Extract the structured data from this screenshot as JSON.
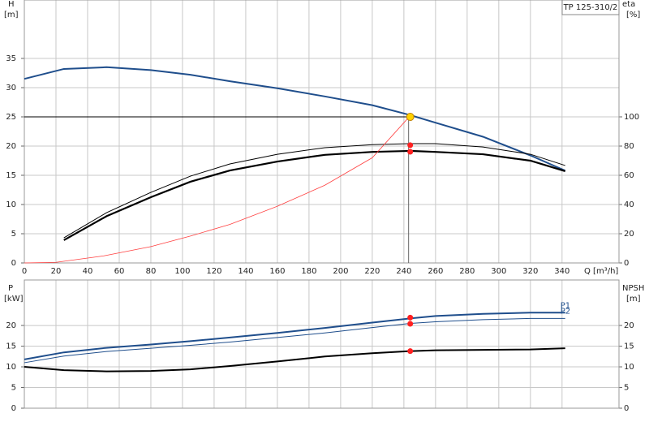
{
  "chart_data": [
    {
      "type": "line",
      "title": "TP 125-310/2",
      "x_label": "Q [m³/h]",
      "y_label": "H",
      "y_unit": "[m]",
      "y2_label": "eta",
      "y2_unit": "[%]",
      "xlim": [
        0,
        376
      ],
      "xticks": [
        0,
        20,
        40,
        60,
        80,
        100,
        120,
        140,
        160,
        180,
        200,
        220,
        240,
        260,
        280,
        300,
        320,
        340
      ],
      "ylim": [
        0,
        45
      ],
      "yticks": [
        0,
        5,
        10,
        15,
        20,
        25,
        30,
        35
      ],
      "y2lim": [
        0,
        180
      ],
      "y2ticks": [
        0,
        20,
        40,
        60,
        80,
        100
      ],
      "grid": true,
      "series": [
        {
          "color": "#1f4e8c",
          "width": 2,
          "x": [
            0,
            25,
            52,
            80,
            105,
            130,
            160,
            190,
            220,
            244,
            260,
            290,
            320,
            342
          ],
          "values": [
            31.5,
            33.2,
            33.5,
            33,
            32.2,
            31.1,
            29.9,
            28.5,
            27,
            25.3,
            24,
            21.6,
            18.4,
            15.8
          ]
        },
        {
          "color": "#000000",
          "width": 2.2,
          "axis": "y2",
          "x": [
            25,
            52,
            80,
            105,
            130,
            160,
            190,
            220,
            244,
            260,
            290,
            320,
            342
          ],
          "values": [
            15.6,
            32,
            45,
            55.6,
            63.3,
            69.4,
            74,
            76,
            76.7,
            76,
            74.4,
            70,
            62.8
          ]
        },
        {
          "color": "#000000",
          "width": 1,
          "axis": "y2",
          "x": [
            25,
            52,
            80,
            105,
            130,
            160,
            190,
            220,
            244,
            260,
            290,
            320,
            342
          ],
          "values": [
            17.2,
            34.4,
            48.3,
            59.4,
            67.8,
            74.4,
            78.9,
            81,
            81.7,
            81.7,
            79.4,
            74.4,
            66.7
          ]
        },
        {
          "color": "#ff4040",
          "width": 0.8,
          "x": [
            0,
            20,
            50,
            80,
            105,
            130,
            160,
            190,
            220,
            244
          ],
          "values": [
            0,
            0.1,
            1.2,
            2.8,
            4.6,
            6.6,
            9.7,
            13.3,
            18,
            25.2
          ]
        }
      ],
      "duty_point": {
        "x": 244,
        "y": 25,
        "color": "#ffd200"
      },
      "marker_points": [
        {
          "x": 244,
          "y": 80.6,
          "axis": "y2",
          "color": "#ff2020"
        },
        {
          "x": 244,
          "y": 76.1,
          "axis": "y2",
          "color": "#ff2020"
        }
      ]
    },
    {
      "type": "line",
      "y_label": "P",
      "y_unit": "[kW]",
      "y2_label": "NPSH",
      "y2_unit": "[m]",
      "xlim": [
        0,
        376
      ],
      "ylim": [
        0,
        31
      ],
      "yticks": [
        0,
        5,
        10,
        15,
        20
      ],
      "y2lim": [
        0,
        31
      ],
      "y2ticks": [
        0,
        5,
        10,
        15,
        20
      ],
      "grid": true,
      "series": [
        {
          "name": "P1",
          "color": "#1f4e8c",
          "width": 2,
          "x": [
            0,
            25,
            52,
            80,
            105,
            130,
            160,
            190,
            220,
            244,
            260,
            290,
            320,
            342
          ],
          "values": [
            11.8,
            13.5,
            14.6,
            15.4,
            16.2,
            17.1,
            18.2,
            19.4,
            20.7,
            21.7,
            22.3,
            22.8,
            23.1,
            23.1
          ]
        },
        {
          "name": "P2",
          "color": "#1f4e8c",
          "width": 1,
          "x": [
            0,
            25,
            52,
            80,
            105,
            130,
            160,
            190,
            220,
            244,
            260,
            290,
            320,
            342
          ],
          "values": [
            11,
            12.6,
            13.7,
            14.5,
            15.2,
            16,
            17.1,
            18.2,
            19.5,
            20.5,
            20.9,
            21.4,
            21.7,
            21.7
          ]
        },
        {
          "color": "#000000",
          "width": 2,
          "axis": "y2",
          "x": [
            0,
            25,
            52,
            80,
            105,
            130,
            160,
            190,
            220,
            244,
            260,
            290,
            320,
            342
          ],
          "values": [
            10,
            9.2,
            8.9,
            9,
            9.4,
            10.2,
            11.3,
            12.5,
            13.3,
            13.8,
            14,
            14.1,
            14.2,
            14.5
          ]
        }
      ],
      "marker_points": [
        {
          "x": 244,
          "y": 21.9,
          "color": "#ff2020"
        },
        {
          "x": 244,
          "y": 20.4,
          "color": "#ff2020"
        },
        {
          "x": 244,
          "y": 13.8,
          "axis": "y2",
          "color": "#ff2020"
        }
      ]
    }
  ]
}
